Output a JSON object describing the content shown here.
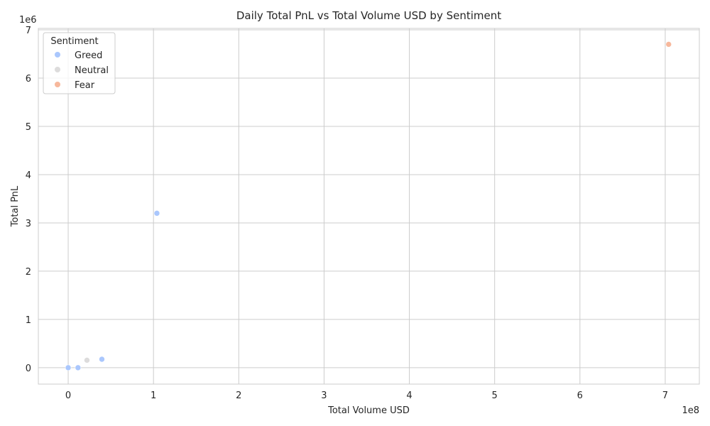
{
  "chart_data": {
    "type": "scatter",
    "title": "Daily Total PnL vs Total Volume USD by Sentiment",
    "xlabel": "Total Volume USD",
    "ylabel": "Total PnL",
    "x_offset_label": "1e8",
    "y_offset_label": "1e6",
    "xlim": [
      -35000000,
      740000000
    ],
    "ylim": [
      -340000,
      7030000
    ],
    "x_ticks": [
      0,
      100000000,
      200000000,
      300000000,
      400000000,
      500000000,
      600000000,
      700000000
    ],
    "x_tick_labels": [
      "0",
      "1",
      "2",
      "3",
      "4",
      "5",
      "6",
      "7"
    ],
    "y_ticks": [
      0,
      1000000,
      2000000,
      3000000,
      4000000,
      5000000,
      6000000,
      7000000
    ],
    "y_tick_labels": [
      "0",
      "1",
      "2",
      "3",
      "4",
      "5",
      "6",
      "7"
    ],
    "grid": true,
    "legend": {
      "title": "Sentiment",
      "placement": "top-left",
      "entries": [
        "Greed",
        "Neutral",
        "Fear"
      ]
    },
    "series": [
      {
        "name": "Greed",
        "color": "#aac7fd",
        "points": [
          {
            "x": 0,
            "y": 0
          },
          {
            "x": 11500000,
            "y": 0
          },
          {
            "x": 39500000,
            "y": 175000
          },
          {
            "x": 104000000,
            "y": 3200000
          }
        ]
      },
      {
        "name": "Neutral",
        "color": "#dddcdc",
        "points": [
          {
            "x": 22000000,
            "y": 155000
          }
        ]
      },
      {
        "name": "Fear",
        "color": "#f7b89c",
        "points": [
          {
            "x": 704000000,
            "y": 6700000
          }
        ]
      }
    ]
  }
}
